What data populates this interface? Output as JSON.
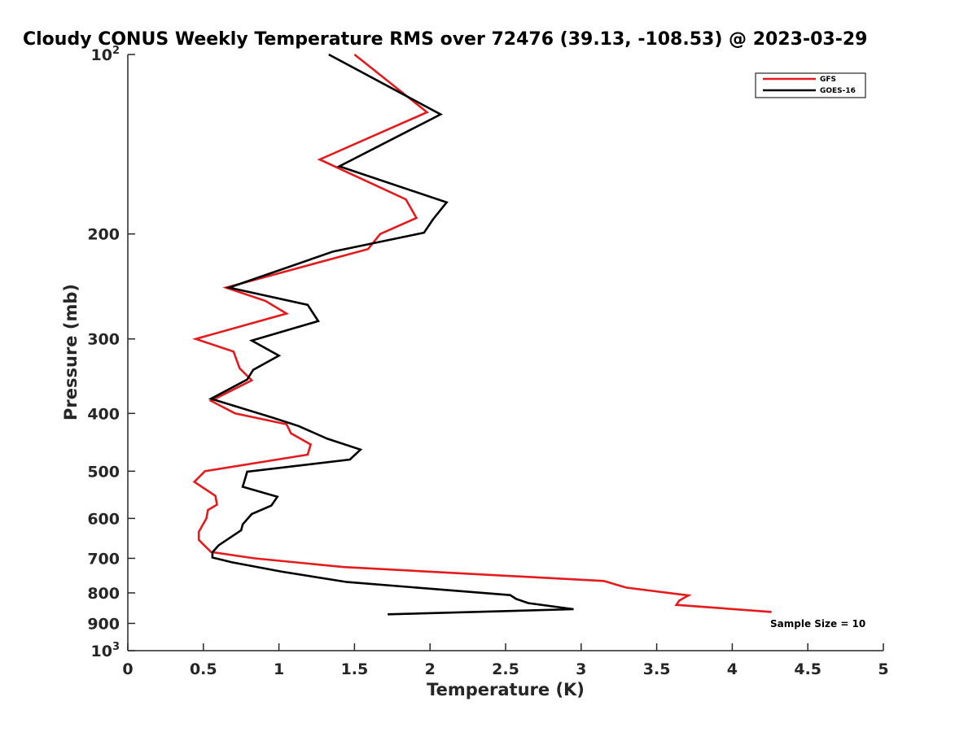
{
  "chart_data": {
    "type": "line",
    "title": "Cloudy CONUS Weekly Temperature RMS over 72476 (39.13, -108.53) @ 2023-03-29",
    "xlabel": "Temperature (K)",
    "ylabel": "Pressure (mb)",
    "xlim": [
      0,
      5
    ],
    "ylim": [
      100,
      1000
    ],
    "y_scale": "log",
    "y_reversed": true,
    "x_ticks": [
      "0",
      "0.5",
      "1",
      "1.5",
      "2",
      "2.5",
      "3",
      "3.5",
      "4",
      "4.5",
      "5"
    ],
    "y_ticks": [
      {
        "base": "10",
        "exp": "2",
        "value": 100
      },
      {
        "label": "200",
        "value": 200
      },
      {
        "label": "300",
        "value": 300
      },
      {
        "label": "400",
        "value": 400
      },
      {
        "label": "500",
        "value": 500
      },
      {
        "label": "600",
        "value": 600
      },
      {
        "label": "700",
        "value": 700
      },
      {
        "label": "800",
        "value": 800
      },
      {
        "label": "900",
        "value": 900
      },
      {
        "base": "10",
        "exp": "3",
        "value": 1000
      }
    ],
    "grid": false,
    "legend_position": "top-right",
    "annotation": "Sample Size = 10",
    "series": [
      {
        "name": "GFS",
        "color": "#e41a1c",
        "points": [
          [
            1.5,
            100
          ],
          [
            1.98,
            125
          ],
          [
            1.27,
            150
          ],
          [
            1.84,
            175
          ],
          [
            1.91,
            188
          ],
          [
            1.67,
            200
          ],
          [
            1.59,
            212
          ],
          [
            0.65,
            246
          ],
          [
            0.91,
            259
          ],
          [
            1.05,
            272
          ],
          [
            0.45,
            300
          ],
          [
            0.7,
            315
          ],
          [
            0.74,
            336
          ],
          [
            0.82,
            352
          ],
          [
            0.55,
            381
          ],
          [
            0.71,
            400
          ],
          [
            1.05,
            417
          ],
          [
            1.08,
            432
          ],
          [
            1.21,
            451
          ],
          [
            1.19,
            469
          ],
          [
            0.51,
            500
          ],
          [
            0.44,
            521
          ],
          [
            0.58,
            550
          ],
          [
            0.59,
            569
          ],
          [
            0.53,
            581
          ],
          [
            0.52,
            600
          ],
          [
            0.47,
            632
          ],
          [
            0.47,
            652
          ],
          [
            0.55,
            683
          ],
          [
            0.84,
            700
          ],
          [
            1.43,
            724
          ],
          [
            3.15,
            764
          ],
          [
            3.3,
            784
          ],
          [
            3.71,
            808
          ],
          [
            3.65,
            824
          ],
          [
            3.63,
            838
          ],
          [
            4.26,
            861
          ]
        ]
      },
      {
        "name": "GOES-16",
        "color": "#000000",
        "points": [
          [
            1.33,
            100
          ],
          [
            2.07,
            126
          ],
          [
            1.4,
            154
          ],
          [
            2.11,
            177
          ],
          [
            2.02,
            189
          ],
          [
            1.96,
            199
          ],
          [
            1.36,
            214
          ],
          [
            0.67,
            246
          ],
          [
            1.19,
            263
          ],
          [
            1.26,
            280
          ],
          [
            0.82,
            302
          ],
          [
            1.0,
            320
          ],
          [
            0.83,
            338
          ],
          [
            0.79,
            351
          ],
          [
            0.55,
            378
          ],
          [
            0.95,
            406
          ],
          [
            1.13,
            420
          ],
          [
            1.32,
            441
          ],
          [
            1.54,
            460
          ],
          [
            1.47,
            478
          ],
          [
            0.79,
            501
          ],
          [
            0.76,
            531
          ],
          [
            0.99,
            552
          ],
          [
            0.95,
            571
          ],
          [
            0.82,
            590
          ],
          [
            0.76,
            614
          ],
          [
            0.75,
            628
          ],
          [
            0.6,
            666
          ],
          [
            0.56,
            684
          ],
          [
            0.56,
            698
          ],
          [
            0.69,
            711
          ],
          [
            1.02,
            737
          ],
          [
            1.45,
            767
          ],
          [
            2.53,
            807
          ],
          [
            2.57,
            819
          ],
          [
            2.65,
            832
          ],
          [
            2.95,
            852
          ],
          [
            1.72,
            869
          ]
        ]
      }
    ]
  }
}
